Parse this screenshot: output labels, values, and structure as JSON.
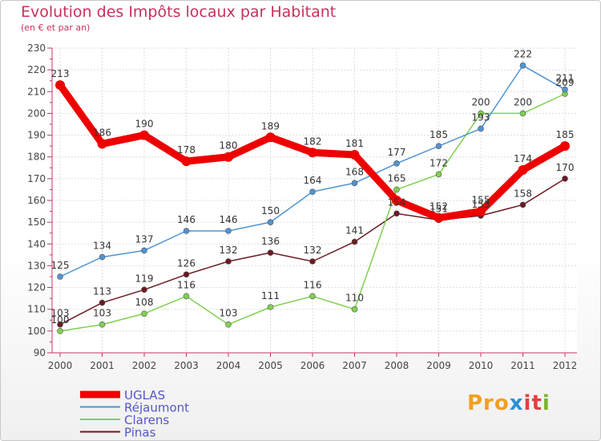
{
  "header": {
    "title": "Evolution des Impôts locaux par Habitant",
    "subtitle": "(en € et par an)"
  },
  "logo": {
    "text": "Proxiti",
    "parts": [
      "Pro",
      "x",
      "it",
      "i"
    ]
  },
  "chart_data": {
    "type": "line",
    "title": "Evolution des Impôts locaux par Habitant",
    "subtitle": "(en € et par an)",
    "xlabel": "",
    "ylabel": "",
    "ylim": [
      90,
      230
    ],
    "yticks": [
      90,
      100,
      110,
      120,
      130,
      140,
      150,
      160,
      170,
      180,
      190,
      200,
      210,
      220,
      230
    ],
    "grid": true,
    "legend_position": "bottom-left",
    "x": [
      "2000",
      "2001",
      "2002",
      "2003",
      "2004",
      "2005",
      "2006",
      "2007",
      "2008",
      "2009",
      "2010",
      "2011",
      "2012"
    ],
    "series": [
      {
        "name": "UGLAS",
        "color": "#ee0000",
        "values": [
          213,
          186,
          190,
          178,
          180,
          189,
          182,
          181,
          160,
          152,
          155,
          174,
          185
        ],
        "labels": [
          "213",
          "186",
          "190",
          "178",
          "180",
          "189",
          "182",
          "181",
          "",
          "152",
          "155",
          "174",
          "185"
        ]
      },
      {
        "name": "Réjaumont",
        "color": "#4f94d4",
        "values": [
          125,
          134,
          137,
          146,
          146,
          150,
          164,
          168,
          177,
          185,
          193,
          222,
          211
        ],
        "labels": [
          "125",
          "134",
          "137",
          "146",
          "146",
          "150",
          "164",
          "168",
          "177",
          "185",
          "193",
          "222",
          "211"
        ]
      },
      {
        "name": "Clarens",
        "color": "#80d050",
        "values": [
          100,
          103,
          108,
          116,
          103,
          111,
          116,
          110,
          165,
          172,
          200,
          200,
          209
        ],
        "labels": [
          "100",
          "103",
          "108",
          "116",
          "103",
          "111",
          "116",
          "110",
          "165",
          "172",
          "200",
          "200",
          "209"
        ]
      },
      {
        "name": "Pinas",
        "color": "#6b1a24",
        "values": [
          103,
          113,
          119,
          126,
          132,
          136,
          132,
          141,
          154,
          151,
          153,
          158,
          170
        ],
        "labels": [
          "103",
          "113",
          "119",
          "126",
          "132",
          "136",
          "132",
          "141",
          "154",
          "151",
          "153",
          "158",
          "170"
        ]
      }
    ]
  }
}
